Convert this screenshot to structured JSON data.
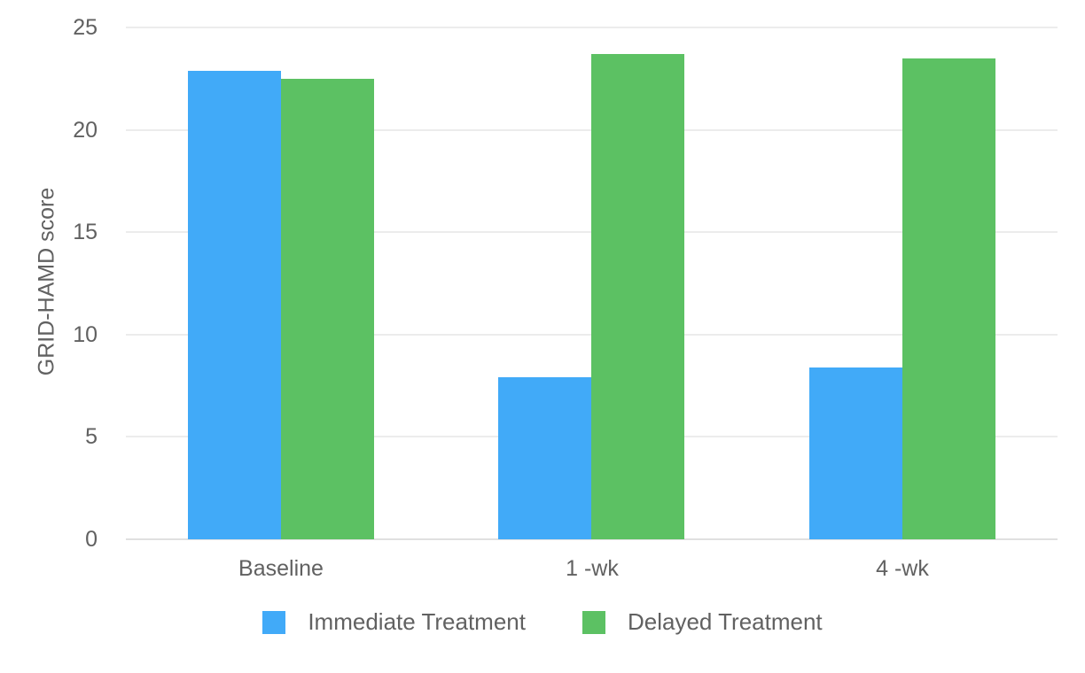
{
  "chart_data": {
    "type": "bar",
    "title": "",
    "categories": [
      "Baseline",
      "1 -wk",
      "4 -wk"
    ],
    "series": [
      {
        "name": "Immediate Treatment",
        "color": "#41aaf8",
        "values": [
          22.9,
          7.9,
          8.4
        ]
      },
      {
        "name": "Delayed Treatment",
        "color": "#5cc163",
        "values": [
          22.5,
          23.7,
          23.5
        ]
      }
    ],
    "xlabel": "",
    "ylabel": "GRID-HAMD score",
    "ylim": [
      0,
      25
    ],
    "yticks": [
      0,
      5,
      10,
      15,
      20,
      25
    ],
    "grid": "horizontal",
    "gridline_color": "#ececec",
    "axis_line_color": "#e0e0e0",
    "label_color": "#616161",
    "legend_position": "bottom-center",
    "background": "#ffffff"
  }
}
